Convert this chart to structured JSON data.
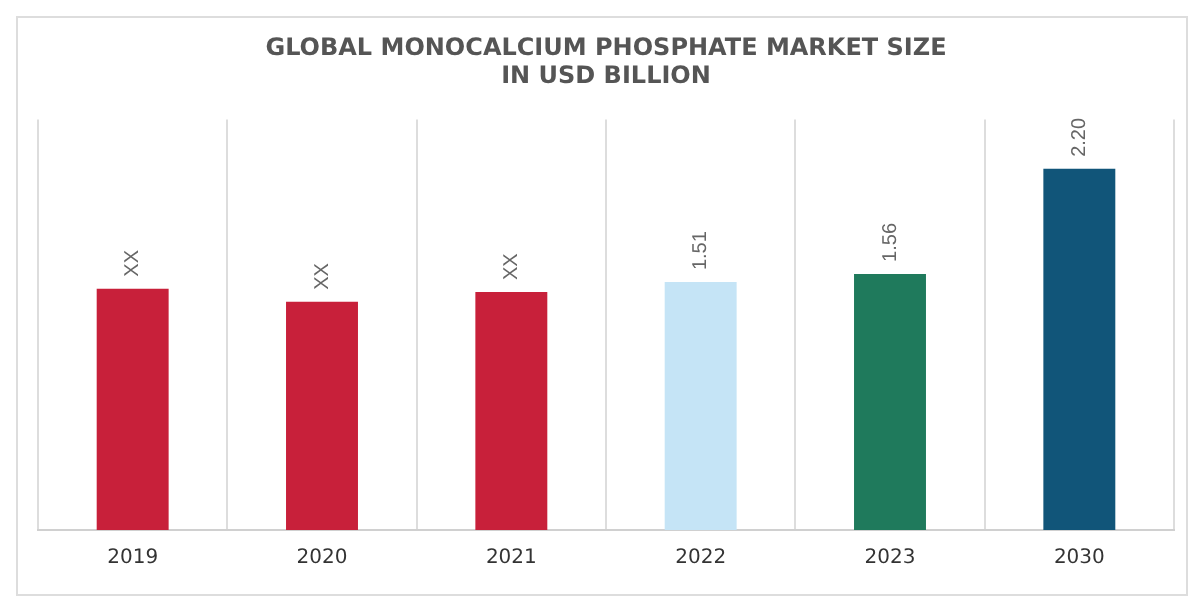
{
  "chart_data": {
    "type": "bar",
    "title": "GLOBAL MONOCALCIUM PHOSPHATE MARKET SIZE\nIN USD BILLION",
    "categories": [
      "2019",
      "2020",
      "2021",
      "2022",
      "2023",
      "2030"
    ],
    "values": [
      1.47,
      1.39,
      1.45,
      1.51,
      1.56,
      2.2
    ],
    "value_labels": [
      "XX",
      "XX",
      "XX",
      "1.51",
      "1.56",
      "2.20"
    ],
    "colors": [
      "#c8203a",
      "#c8203a",
      "#c8203a",
      "#c5e4f6",
      "#1f7a5c",
      "#115579"
    ],
    "grid": "x",
    "tick_labels": "x",
    "legend": false
  }
}
